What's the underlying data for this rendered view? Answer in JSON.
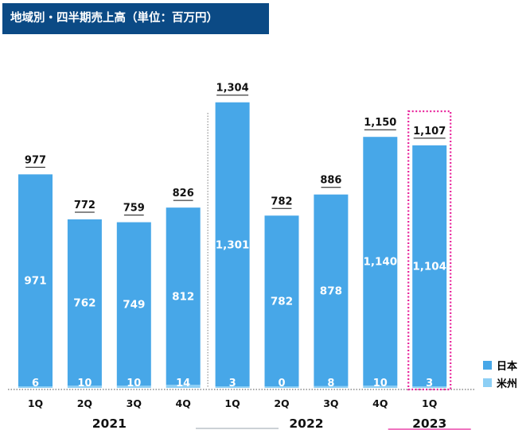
{
  "title": "地域別・四半期売上高（単位：百万円）",
  "colors": {
    "japan": "#47a7e8",
    "us": "#8dcff5",
    "title_bg": "#0b4a85",
    "highlight": "#e8239b"
  },
  "chart_data": {
    "type": "bar",
    "stacked": true,
    "categories": [
      "1Q",
      "2Q",
      "3Q",
      "4Q",
      "1Q",
      "2Q",
      "3Q",
      "4Q",
      "1Q"
    ],
    "groups": [
      {
        "label": "2021",
        "categories": [
          "1Q",
          "2Q",
          "3Q",
          "4Q"
        ]
      },
      {
        "label": "2022",
        "categories": [
          "1Q",
          "2Q",
          "3Q",
          "4Q"
        ]
      },
      {
        "label": "2023",
        "categories": [
          "1Q"
        ]
      }
    ],
    "series": [
      {
        "name": "日本",
        "values": [
          971,
          762,
          749,
          812,
          1301,
          782,
          878,
          1140,
          1104
        ]
      },
      {
        "name": "米州",
        "values": [
          6,
          10,
          10,
          14,
          3,
          0,
          8,
          10,
          3
        ]
      }
    ],
    "totals": [
      977,
      772,
      759,
      826,
      1304,
      782,
      886,
      1150,
      1107
    ],
    "total_labels": [
      "977",
      "772",
      "759",
      "826",
      "1,304",
      "782",
      "886",
      "1,150",
      "1,107"
    ],
    "japan_labels": [
      "971",
      "762",
      "749",
      "812",
      "1,301",
      "782",
      "878",
      "1,140",
      "1,104"
    ],
    "us_labels": [
      "6",
      "10",
      "10",
      "14",
      "3",
      "0",
      "8",
      "10",
      "3"
    ],
    "highlight_index": 8,
    "ylim": [
      0,
      1400
    ],
    "legend_position": "bottom-right"
  }
}
